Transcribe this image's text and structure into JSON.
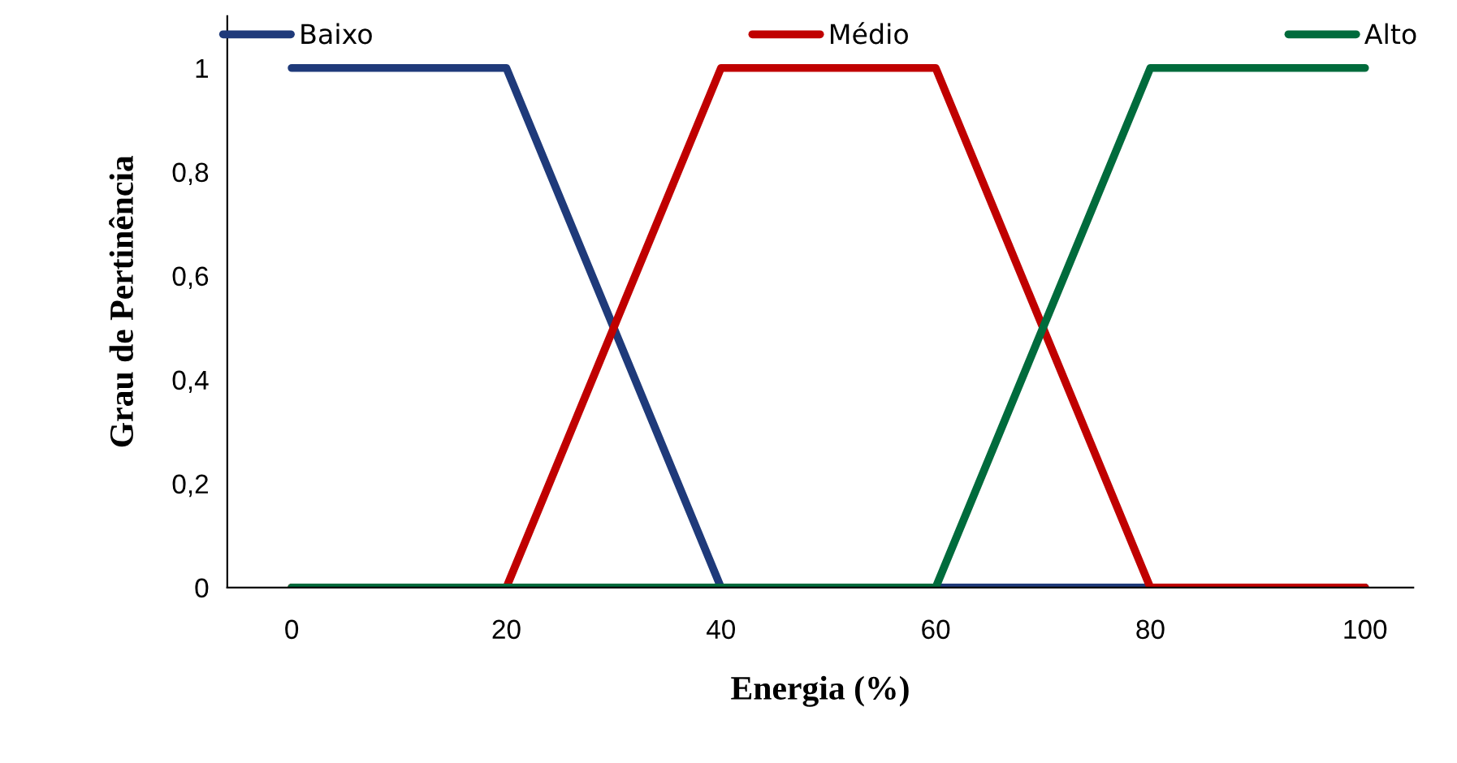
{
  "chart_data": {
    "type": "line",
    "xlabel": "Energia (%)",
    "ylabel": "Grau de Pertinência",
    "xlim": [
      -6,
      104.5
    ],
    "ylim": [
      0,
      1.1
    ],
    "xticks": [
      0,
      20,
      40,
      60,
      80,
      100
    ],
    "yticks": [
      {
        "value": 0,
        "label": "0"
      },
      {
        "value": 0.2,
        "label": "0,2"
      },
      {
        "value": 0.4,
        "label": "0,4"
      },
      {
        "value": 0.6,
        "label": "0,6"
      },
      {
        "value": 0.8,
        "label": "0,8"
      },
      {
        "value": 1,
        "label": "1"
      }
    ],
    "series": [
      {
        "name": "Baixo",
        "color": "#1f3a7a",
        "x": [
          0,
          20,
          40,
          100
        ],
        "values": [
          1,
          1,
          0,
          0
        ]
      },
      {
        "name": "Médio",
        "color": "#c00000",
        "x": [
          0,
          20,
          40,
          60,
          80,
          100
        ],
        "values": [
          0,
          0,
          1,
          1,
          0,
          0
        ]
      },
      {
        "name": "Alto",
        "color": "#006b3c",
        "x": [
          0,
          60,
          80,
          100
        ],
        "values": [
          0,
          0,
          1,
          1
        ]
      }
    ],
    "grid": false,
    "legend": "top",
    "marker": "none",
    "line_style": "solid"
  }
}
